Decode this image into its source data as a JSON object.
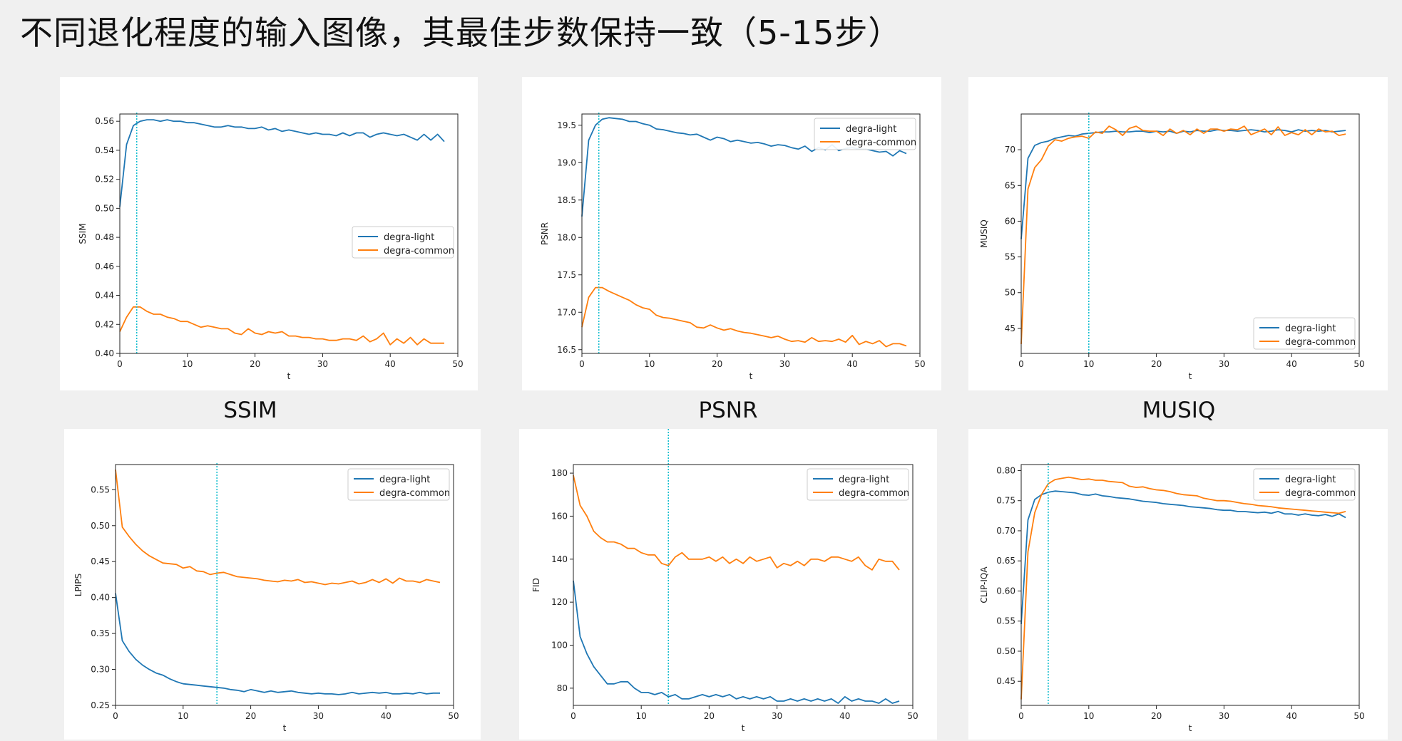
{
  "slide": {
    "title": "不同退化程度的输入图像，其最佳步数保持一致（5-15步）"
  },
  "captions": [
    "SSIM",
    "PSNR",
    "MUSIQ"
  ],
  "colors": {
    "light": "#1f77b4",
    "common": "#ff7f0e",
    "marker": "#17becf"
  },
  "chart_data": [
    {
      "type": "line",
      "id": "ssim",
      "xlabel": "t",
      "ylabel": "SSIM",
      "xlim": [
        0,
        50
      ],
      "ylim": [
        0.4,
        0.565
      ],
      "xticks": [
        0,
        10,
        20,
        30,
        40,
        50
      ],
      "yticks": [
        0.4,
        0.42,
        0.44,
        0.46,
        0.48,
        0.5,
        0.52,
        0.54,
        0.56
      ],
      "ytick_labels": [
        "0.40",
        "0.42",
        "0.44",
        "0.46",
        "0.48",
        "0.50",
        "0.52",
        "0.54",
        "0.56"
      ],
      "vline": 2.5,
      "legend": "center-right",
      "series": [
        {
          "name": "degra-light",
          "values": [
            0.501,
            0.544,
            0.557,
            0.56,
            0.561,
            0.561,
            0.56,
            0.561,
            0.56,
            0.56,
            0.559,
            0.559,
            0.558,
            0.557,
            0.556,
            0.556,
            0.557,
            0.556,
            0.556,
            0.555,
            0.555,
            0.556,
            0.554,
            0.555,
            0.553,
            0.554,
            0.553,
            0.552,
            0.551,
            0.552,
            0.551,
            0.551,
            0.55,
            0.552,
            0.55,
            0.552,
            0.552,
            0.549,
            0.551,
            0.552,
            0.551,
            0.55,
            0.551,
            0.549,
            0.547,
            0.551,
            0.547,
            0.551,
            0.546
          ]
        },
        {
          "name": "degra-common",
          "values": [
            0.415,
            0.425,
            0.432,
            0.432,
            0.429,
            0.427,
            0.427,
            0.425,
            0.424,
            0.422,
            0.422,
            0.42,
            0.418,
            0.419,
            0.418,
            0.417,
            0.417,
            0.414,
            0.413,
            0.417,
            0.414,
            0.413,
            0.415,
            0.414,
            0.415,
            0.412,
            0.412,
            0.411,
            0.411,
            0.41,
            0.41,
            0.409,
            0.409,
            0.41,
            0.41,
            0.409,
            0.412,
            0.408,
            0.41,
            0.414,
            0.406,
            0.41,
            0.407,
            0.411,
            0.406,
            0.41,
            0.407,
            0.407,
            0.407
          ]
        }
      ]
    },
    {
      "type": "line",
      "id": "psnr",
      "xlabel": "t",
      "ylabel": "PSNR",
      "xlim": [
        0,
        50
      ],
      "ylim": [
        16.45,
        19.65
      ],
      "xticks": [
        0,
        10,
        20,
        30,
        40,
        50
      ],
      "yticks": [
        16.5,
        17.0,
        17.5,
        18.0,
        18.5,
        19.0,
        19.5
      ],
      "ytick_labels": [
        "16.5",
        "17.0",
        "17.5",
        "18.0",
        "18.5",
        "19.0",
        "19.5"
      ],
      "vline": 2.5,
      "legend": "top-right",
      "series": [
        {
          "name": "degra-light",
          "values": [
            18.28,
            19.3,
            19.5,
            19.58,
            19.6,
            19.59,
            19.58,
            19.55,
            19.55,
            19.52,
            19.5,
            19.45,
            19.44,
            19.42,
            19.4,
            19.39,
            19.37,
            19.38,
            19.34,
            19.3,
            19.34,
            19.32,
            19.28,
            19.3,
            19.28,
            19.26,
            19.27,
            19.25,
            19.22,
            19.24,
            19.23,
            19.2,
            19.18,
            19.22,
            19.15,
            19.2,
            19.17,
            19.24,
            19.16,
            19.19,
            19.2,
            19.18,
            19.18,
            19.16,
            19.14,
            19.15,
            19.09,
            19.16,
            19.12
          ]
        },
        {
          "name": "degra-common",
          "values": [
            16.8,
            17.2,
            17.33,
            17.33,
            17.28,
            17.24,
            17.2,
            17.16,
            17.1,
            17.06,
            17.04,
            16.96,
            16.93,
            16.92,
            16.9,
            16.88,
            16.86,
            16.8,
            16.79,
            16.83,
            16.79,
            16.76,
            16.78,
            16.75,
            16.73,
            16.72,
            16.7,
            16.68,
            16.66,
            16.68,
            16.64,
            16.61,
            16.62,
            16.6,
            16.66,
            16.61,
            16.62,
            16.61,
            16.64,
            16.6,
            16.69,
            16.57,
            16.61,
            16.58,
            16.62,
            16.54,
            16.58,
            16.58,
            16.55
          ]
        }
      ]
    },
    {
      "type": "line",
      "id": "musiq",
      "xlabel": "t",
      "ylabel": "MUSIQ",
      "xlim": [
        0,
        50
      ],
      "ylim": [
        41.5,
        75.0
      ],
      "xticks": [
        0,
        10,
        20,
        30,
        40,
        50
      ],
      "yticks": [
        45,
        50,
        55,
        60,
        65,
        70
      ],
      "ytick_labels": [
        "45",
        "50",
        "55",
        "60",
        "65",
        "70"
      ],
      "vline": 10,
      "legend": "bottom-right",
      "series": [
        {
          "name": "degra-light",
          "values": [
            57.5,
            68.8,
            70.6,
            71.0,
            71.2,
            71.6,
            71.8,
            72.0,
            71.9,
            72.2,
            72.3,
            72.4,
            72.5,
            72.5,
            72.6,
            72.5,
            72.5,
            72.6,
            72.6,
            72.4,
            72.6,
            72.5,
            72.6,
            72.3,
            72.6,
            72.5,
            72.7,
            72.6,
            72.6,
            72.8,
            72.7,
            72.7,
            72.6,
            72.7,
            72.8,
            72.7,
            72.5,
            72.6,
            72.8,
            72.7,
            72.5,
            72.8,
            72.6,
            72.7,
            72.6,
            72.7,
            72.5,
            72.6,
            72.7
          ]
        },
        {
          "name": "degra-common",
          "values": [
            42.8,
            64.5,
            67.5,
            68.6,
            70.5,
            71.4,
            71.2,
            71.6,
            71.8,
            71.9,
            71.6,
            72.5,
            72.3,
            73.3,
            72.8,
            72.0,
            73.0,
            73.3,
            72.7,
            72.6,
            72.6,
            72.0,
            72.9,
            72.3,
            72.7,
            72.1,
            72.9,
            72.3,
            72.9,
            72.9,
            72.6,
            72.9,
            72.8,
            73.3,
            72.1,
            72.5,
            72.9,
            72.1,
            73.2,
            72.0,
            72.4,
            72.1,
            72.8,
            72.1,
            72.9,
            72.5,
            72.6,
            72.0,
            72.2
          ]
        }
      ]
    },
    {
      "type": "line",
      "id": "lpips",
      "xlabel": "t",
      "ylabel": "LPIPS",
      "xlim": [
        0,
        50
      ],
      "ylim": [
        0.25,
        0.585
      ],
      "xticks": [
        0,
        10,
        20,
        30,
        40,
        50
      ],
      "yticks": [
        0.25,
        0.3,
        0.35,
        0.4,
        0.45,
        0.5,
        0.55
      ],
      "ytick_labels": [
        "0.25",
        "0.30",
        "0.35",
        "0.40",
        "0.45",
        "0.50",
        "0.55"
      ],
      "vline": 15,
      "legend": "top-right",
      "series": [
        {
          "name": "degra-light",
          "values": [
            0.406,
            0.34,
            0.325,
            0.314,
            0.306,
            0.3,
            0.295,
            0.292,
            0.287,
            0.283,
            0.28,
            0.279,
            0.278,
            0.277,
            0.276,
            0.275,
            0.274,
            0.272,
            0.271,
            0.269,
            0.272,
            0.27,
            0.268,
            0.27,
            0.268,
            0.269,
            0.27,
            0.268,
            0.267,
            0.266,
            0.267,
            0.266,
            0.266,
            0.265,
            0.266,
            0.268,
            0.266,
            0.267,
            0.268,
            0.267,
            0.268,
            0.266,
            0.266,
            0.267,
            0.266,
            0.268,
            0.266,
            0.267,
            0.267
          ]
        },
        {
          "name": "degra-common",
          "values": [
            0.578,
            0.498,
            0.485,
            0.474,
            0.465,
            0.458,
            0.453,
            0.448,
            0.447,
            0.446,
            0.441,
            0.443,
            0.437,
            0.436,
            0.432,
            0.434,
            0.435,
            0.432,
            0.429,
            0.428,
            0.427,
            0.426,
            0.424,
            0.423,
            0.422,
            0.424,
            0.423,
            0.425,
            0.421,
            0.422,
            0.42,
            0.418,
            0.42,
            0.419,
            0.421,
            0.423,
            0.419,
            0.421,
            0.425,
            0.421,
            0.426,
            0.42,
            0.427,
            0.423,
            0.423,
            0.421,
            0.425,
            0.423,
            0.421
          ]
        }
      ]
    },
    {
      "type": "line",
      "id": "fid",
      "xlabel": "t",
      "ylabel": "FID",
      "xlim": [
        0,
        50
      ],
      "ylim": [
        72,
        184
      ],
      "xticks": [
        0,
        10,
        20,
        30,
        40,
        50
      ],
      "yticks": [
        80,
        100,
        120,
        140,
        160,
        180
      ],
      "ytick_labels": [
        "80",
        "100",
        "120",
        "140",
        "160",
        "180"
      ],
      "vline": 14,
      "legend": "top-right",
      "series": [
        {
          "name": "degra-light",
          "values": [
            130,
            104,
            96,
            90,
            86,
            82,
            82,
            83,
            83,
            80,
            78,
            78,
            77,
            78,
            76,
            77,
            75,
            75,
            76,
            77,
            76,
            77,
            76,
            77,
            75,
            76,
            75,
            76,
            75,
            76,
            74,
            74,
            75,
            74,
            75,
            74,
            75,
            74,
            75,
            73,
            76,
            74,
            75,
            74,
            74,
            73,
            75,
            73,
            74
          ]
        },
        {
          "name": "degra-common",
          "values": [
            179,
            165,
            160,
            153,
            150,
            148,
            148,
            147,
            145,
            145,
            143,
            142,
            142,
            138,
            137,
            141,
            143,
            140,
            140,
            140,
            141,
            139,
            141,
            138,
            140,
            138,
            141,
            139,
            140,
            141,
            136,
            138,
            137,
            139,
            137,
            140,
            140,
            139,
            141,
            141,
            140,
            139,
            141,
            137,
            135,
            140,
            139,
            139,
            135
          ]
        }
      ]
    },
    {
      "type": "line",
      "id": "clip-iqa",
      "xlabel": "t",
      "ylabel": "CLIP-IQA",
      "xlim": [
        0,
        50
      ],
      "ylim": [
        0.41,
        0.81
      ],
      "xticks": [
        0,
        10,
        20,
        30,
        40,
        50
      ],
      "yticks": [
        0.45,
        0.5,
        0.55,
        0.6,
        0.65,
        0.7,
        0.75,
        0.8
      ],
      "ytick_labels": [
        "0.45",
        "0.50",
        "0.55",
        "0.60",
        "0.65",
        "0.70",
        "0.75",
        "0.80"
      ],
      "vline": 4,
      "legend": "top-right",
      "series": [
        {
          "name": "degra-light",
          "values": [
            0.545,
            0.718,
            0.752,
            0.76,
            0.764,
            0.766,
            0.765,
            0.764,
            0.763,
            0.76,
            0.759,
            0.761,
            0.758,
            0.757,
            0.755,
            0.754,
            0.753,
            0.751,
            0.749,
            0.748,
            0.747,
            0.745,
            0.744,
            0.743,
            0.742,
            0.74,
            0.739,
            0.738,
            0.737,
            0.735,
            0.734,
            0.734,
            0.732,
            0.732,
            0.731,
            0.73,
            0.731,
            0.729,
            0.732,
            0.728,
            0.728,
            0.726,
            0.728,
            0.726,
            0.725,
            0.727,
            0.724,
            0.728,
            0.722
          ]
        },
        {
          "name": "degra-common",
          "values": [
            0.42,
            0.665,
            0.73,
            0.76,
            0.778,
            0.785,
            0.787,
            0.789,
            0.787,
            0.785,
            0.786,
            0.784,
            0.784,
            0.782,
            0.781,
            0.78,
            0.774,
            0.772,
            0.773,
            0.77,
            0.768,
            0.767,
            0.765,
            0.762,
            0.76,
            0.759,
            0.758,
            0.754,
            0.752,
            0.75,
            0.75,
            0.749,
            0.747,
            0.745,
            0.744,
            0.742,
            0.741,
            0.74,
            0.738,
            0.737,
            0.736,
            0.735,
            0.734,
            0.733,
            0.732,
            0.731,
            0.73,
            0.729,
            0.732
          ]
        }
      ]
    }
  ]
}
